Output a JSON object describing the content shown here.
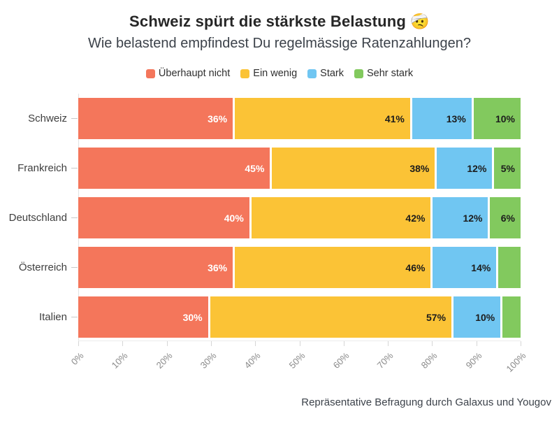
{
  "title": "Schweiz spürt die stärkste Belastung 🤕",
  "subtitle": "Wie belastend empfindest Du regelmässige Ratenzahlungen?",
  "footer": "Repräsentative Befragung durch Galaxus und Yougov",
  "colors": {
    "ueberhaupt_nicht": "#f4765b",
    "ein_wenig": "#fbc336",
    "stark": "#70c6f2",
    "sehr_stark": "#82c95e",
    "zero_gridline": "#e3e3e3",
    "axis_label": "#8a8a8a"
  },
  "chart_data": {
    "type": "bar",
    "orientation": "horizontal",
    "stacked": true,
    "title": "Schweiz spürt die stärkste Belastung 🤕",
    "subtitle": "Wie belastend empfindest Du regelmässige Ratenzahlungen?",
    "categories": [
      "Schweiz",
      "Frankreich",
      "Deutschland",
      "Österreich",
      "Italien"
    ],
    "series": [
      {
        "name": "Überhaupt nicht",
        "color": "#f4765b",
        "label_color": "#ffffff",
        "values": [
          36,
          45,
          40,
          36,
          30
        ],
        "labels": [
          "36%",
          "45%",
          "40%",
          "36%",
          "30%"
        ]
      },
      {
        "name": "Ein wenig",
        "color": "#fbc336",
        "label_color": "#1c1c1c",
        "values": [
          41,
          38,
          42,
          46,
          57
        ],
        "labels": [
          "41%",
          "38%",
          "42%",
          "46%",
          "57%"
        ]
      },
      {
        "name": "Stark",
        "color": "#70c6f2",
        "label_color": "#1c1c1c",
        "values": [
          13,
          12,
          12,
          14,
          10
        ],
        "labels": [
          "13%",
          "12%",
          "12%",
          "14%",
          "10%"
        ]
      },
      {
        "name": "Sehr stark",
        "color": "#82c95e",
        "label_color": "#1c1c1c",
        "values": [
          10,
          5,
          6,
          4,
          3
        ],
        "labels": [
          "10%",
          "5%",
          "6%",
          "",
          ""
        ]
      }
    ],
    "x_axis": {
      "min": 0,
      "max": 100,
      "ticks": [
        "0%",
        "10%",
        "20%",
        "30%",
        "40%",
        "50%",
        "60%",
        "70%",
        "80%",
        "90%",
        "100%"
      ]
    },
    "legend_position": "top",
    "grid": "zero-line-only",
    "source": "Repräsentative Befragung durch Galaxus und Yougov"
  }
}
